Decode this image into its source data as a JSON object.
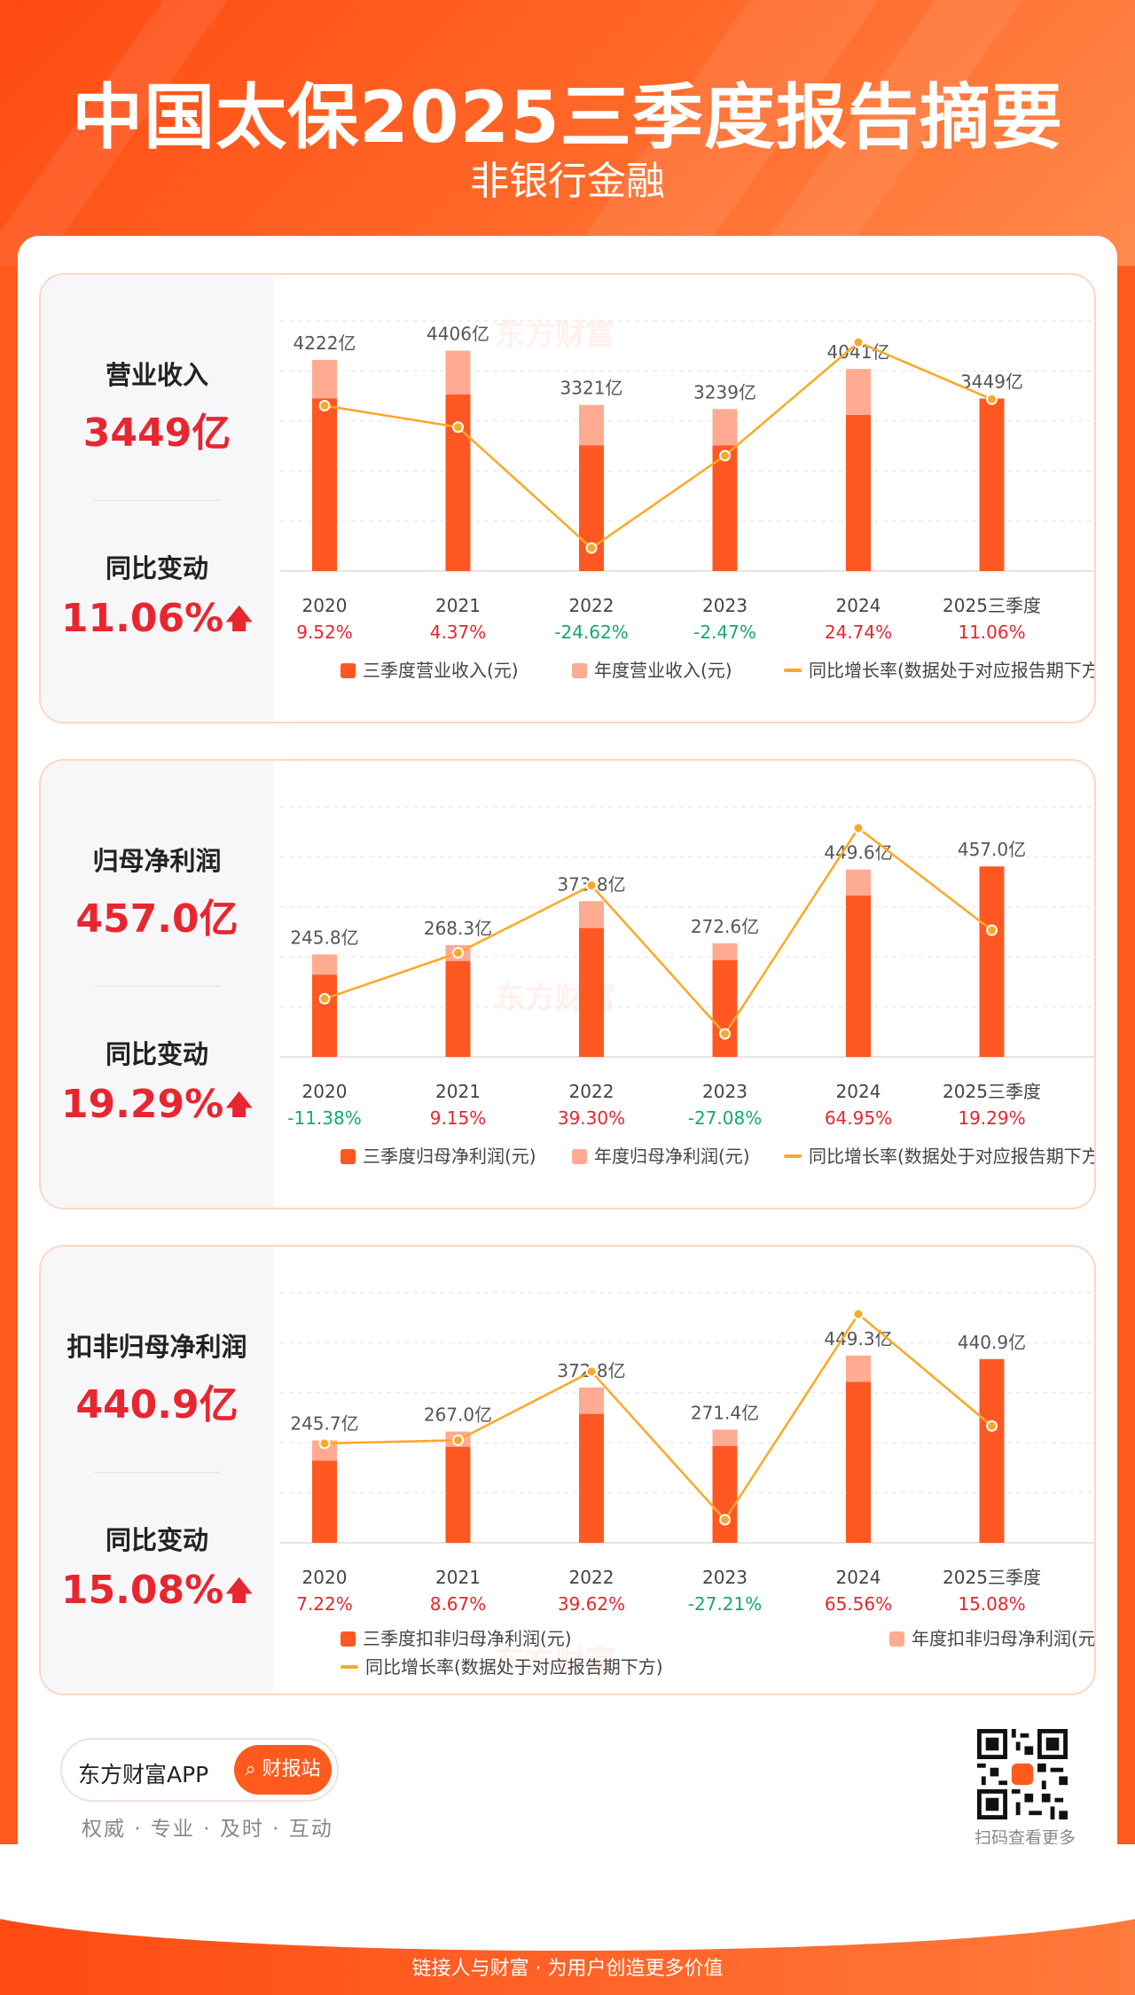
{
  "header": {
    "title": "中国太保2025三季度报告摘要",
    "subtitle": "非银行金融"
  },
  "colors": {
    "bar_q3": "#ff5722",
    "bar_year": "#ffab91",
    "line": "#ffa726",
    "up": "#e8262f",
    "down": "#16a870"
  },
  "sections": [
    {
      "kpi_label": "营业收入",
      "kpi_value": "3449亿",
      "change_label": "同比变动",
      "change_value": "11.06%",
      "legend": {
        "q3": "三季度营业收入(元)",
        "year": "年度营业收入(元)",
        "line": "同比增长率(数据处于对应报告期下方)"
      }
    },
    {
      "kpi_label": "归母净利润",
      "kpi_value": "457.0亿",
      "change_label": "同比变动",
      "change_value": "19.29%",
      "legend": {
        "q3": "三季度归母净利润(元)",
        "year": "年度归母净利润(元)",
        "line": "同比增长率(数据处于对应报告期下方)"
      }
    },
    {
      "kpi_label": "扣非归母净利润",
      "kpi_value": "440.9亿",
      "change_label": "同比变动",
      "change_value": "15.08%",
      "legend": {
        "q3": "三季度扣非归母净利润(元)",
        "year": "年度扣非归母净利润(元)",
        "line": "同比增长率(数据处于对应报告期下方)"
      }
    }
  ],
  "chart_data": [
    {
      "type": "bar",
      "title": "营业收入",
      "categories": [
        "2020",
        "2021",
        "2022",
        "2023",
        "2024",
        "2025三季度"
      ],
      "series": [
        {
          "name": "三季度营业收入(元)",
          "values": [
            3450,
            3530,
            2510,
            2510,
            3120,
            3449
          ]
        },
        {
          "name": "年度营业收入(元)",
          "values": [
            4222,
            4406,
            3321,
            3239,
            4041,
            null
          ]
        },
        {
          "name": "同比增长率",
          "values": [
            9.52,
            4.37,
            -24.62,
            -2.47,
            24.74,
            11.06
          ]
        }
      ],
      "bar_labels": [
        "4222亿",
        "4406亿",
        "3321亿",
        "3239亿",
        "4041亿",
        "3449亿"
      ],
      "growth_labels": [
        "9.52%",
        "4.37%",
        "-24.62%",
        "-2.47%",
        "24.74%",
        "11.06%"
      ],
      "ylim": [
        0,
        5000
      ]
    },
    {
      "type": "bar",
      "title": "归母净利润",
      "categories": [
        "2020",
        "2021",
        "2022",
        "2023",
        "2024",
        "2025三季度"
      ],
      "series": [
        {
          "name": "三季度归母净利润(元)",
          "values": [
            197,
            230,
            309,
            232,
            387,
            457.0
          ]
        },
        {
          "name": "年度归母净利润(元)",
          "values": [
            245.8,
            268.3,
            373.8,
            272.6,
            449.6,
            null
          ]
        },
        {
          "name": "同比增长率",
          "values": [
            -11.38,
            9.15,
            39.3,
            -27.08,
            64.95,
            19.29
          ]
        }
      ],
      "bar_labels": [
        "245.8亿",
        "268.3亿",
        "373.8亿",
        "272.6亿",
        "449.6亿",
        "457.0亿"
      ],
      "growth_labels": [
        "-11.38%",
        "9.15%",
        "39.30%",
        "-27.08%",
        "64.95%",
        "19.29%"
      ],
      "ylim": [
        0,
        600
      ]
    },
    {
      "type": "bar",
      "title": "扣非归母净利润",
      "categories": [
        "2020",
        "2021",
        "2022",
        "2023",
        "2024",
        "2025三季度"
      ],
      "series": [
        {
          "name": "三季度扣非归母净利润(元)",
          "values": [
            197,
            230,
            309,
            232,
            386,
            440.9
          ]
        },
        {
          "name": "年度扣非归母净利润(元)",
          "values": [
            245.7,
            267.0,
            372.8,
            271.4,
            449.3,
            null
          ]
        },
        {
          "name": "同比增长率",
          "values": [
            7.22,
            8.67,
            39.62,
            -27.21,
            65.56,
            15.08
          ]
        }
      ],
      "bar_labels": [
        "245.7亿",
        "267.0亿",
        "372.8亿",
        "271.4亿",
        "449.3亿",
        "440.9亿"
      ],
      "growth_labels": [
        "7.22%",
        "8.67%",
        "39.62%",
        "-27.21%",
        "65.56%",
        "15.08%"
      ],
      "ylim": [
        0,
        600
      ]
    }
  ],
  "footer": {
    "app_name": "东方财富APP",
    "app_button": "财报站",
    "tagline": "权威 · 专业 · 及时 · 互动",
    "qr_label": "扫码查看更多",
    "slogan": "链接人与财富 · 为用户创造更多价值",
    "watermark": "东方财富"
  }
}
